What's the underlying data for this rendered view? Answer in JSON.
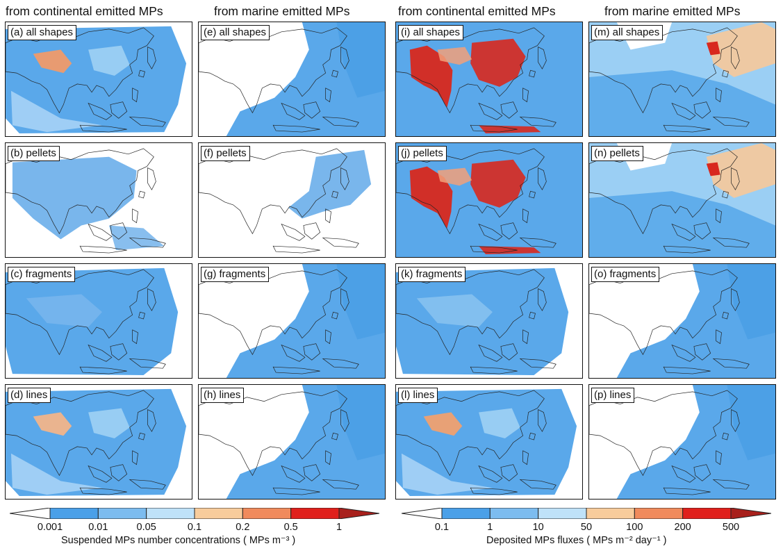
{
  "column_headers": [
    "from continental emitted MPs",
    "from marine emitted MPs",
    "from continental emitted MPs",
    "from marine emitted MPs"
  ],
  "panels": [
    {
      "label": "(a) all shapes",
      "fill": "#5aa8ea",
      "hot": "#f09a6a",
      "level": "high"
    },
    {
      "label": "(b) pellets",
      "fill": "#6aaeea",
      "hot": "#6aaeea",
      "level": "low"
    },
    {
      "label": "(c) fragments",
      "fill": "#5aa8ea",
      "hot": "#7ab6ee",
      "level": "mid"
    },
    {
      "label": "(d) lines",
      "fill": "#5aa8ea",
      "hot": "#f2b48a",
      "level": "high"
    },
    {
      "label": "(e) all shapes",
      "fill": "#5aa8ea",
      "hot": "#5aa8ea",
      "level": "marine"
    },
    {
      "label": "(f) pellets",
      "fill": "#6aaeea",
      "hot": "#6aaeea",
      "level": "marine-low"
    },
    {
      "label": "(g) fragments",
      "fill": "#5aa8ea",
      "hot": "#5aa8ea",
      "level": "marine"
    },
    {
      "label": "(h) lines",
      "fill": "#5aa8ea",
      "hot": "#5aa8ea",
      "level": "marine"
    },
    {
      "label": "(i) all shapes",
      "fill": "#5aa8ea",
      "hot": "#d8281e",
      "level": "extreme"
    },
    {
      "label": "(j) pellets",
      "fill": "#5aa8ea",
      "hot": "#d8281e",
      "level": "extreme"
    },
    {
      "label": "(k) fragments",
      "fill": "#5aa8ea",
      "hot": "#8cc4f0",
      "level": "mid"
    },
    {
      "label": "(l) lines",
      "fill": "#5aa8ea",
      "hot": "#f0a070",
      "level": "high"
    },
    {
      "label": "(m) all shapes",
      "fill": "#5aa8ea",
      "hot": "#f7c89a",
      "level": "marine-flux"
    },
    {
      "label": "(n) pellets",
      "fill": "#5aa8ea",
      "hot": "#f7c89a",
      "level": "marine-flux"
    },
    {
      "label": "(o) fragments",
      "fill": "#5aa8ea",
      "hot": "#5aa8ea",
      "level": "marine"
    },
    {
      "label": "(p) lines",
      "fill": "#5aa8ea",
      "hot": "#5aa8ea",
      "level": "marine"
    }
  ],
  "colorbar_left": {
    "ticks": [
      "0.001",
      "0.01",
      "0.05",
      "0.1",
      "0.2",
      "0.5",
      "1"
    ],
    "colors": [
      "#ffffff",
      "#4aa0e8",
      "#7cbcef",
      "#bfe2f9",
      "#f8cc9c",
      "#f08a5c",
      "#e0201c",
      "#a8201c"
    ],
    "title": "Suspended MPs number concentrations ( MPs m⁻³ )"
  },
  "colorbar_right": {
    "ticks": [
      "0.1",
      "1",
      "10",
      "50",
      "100",
      "200",
      "500"
    ],
    "colors": [
      "#ffffff",
      "#4aa0e8",
      "#7cbcef",
      "#bfe2f9",
      "#f8cc9c",
      "#f08a5c",
      "#e0201c",
      "#a8201c"
    ],
    "title": "Deposited MPs fluxes ( MPs m⁻² day⁻¹ )"
  }
}
